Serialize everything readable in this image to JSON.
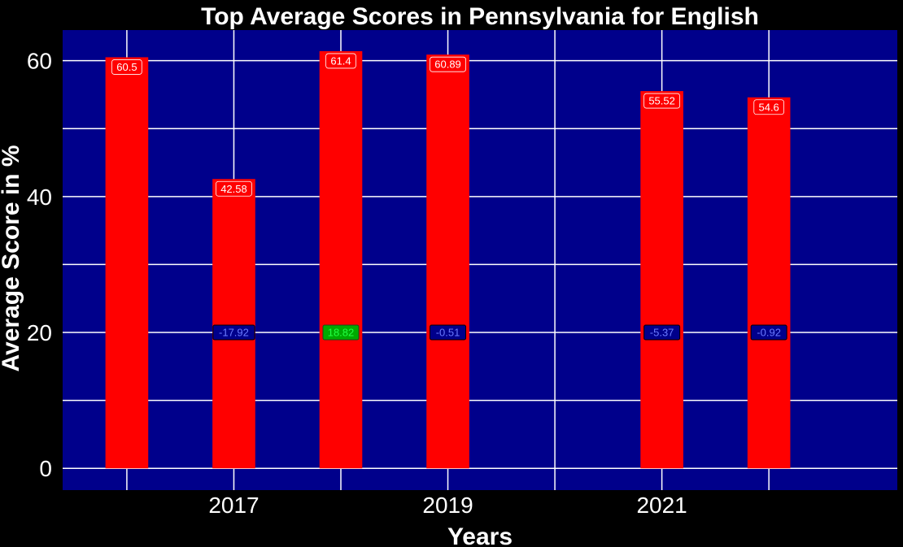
{
  "chart_data": {
    "type": "bar",
    "title": "Top Average Scores in Pennsylvania for English",
    "xlabel": "Years",
    "ylabel": "Average Score in %",
    "x": [
      2016,
      2017,
      2018,
      2019,
      2021,
      2022
    ],
    "values": [
      60.5,
      42.58,
      61.4,
      60.89,
      55.52,
      54.6
    ],
    "value_labels": [
      "60.5",
      "42.58",
      "61.4",
      "60.89",
      "55.52",
      "54.6"
    ],
    "changes": [
      {
        "x": 2017,
        "label": "-17.92",
        "value": -17.92
      },
      {
        "x": 2018,
        "label": "18.82",
        "value": 18.82
      },
      {
        "x": 2019,
        "label": "-0.51",
        "value": -0.51
      },
      {
        "x": 2021,
        "label": "-5.37",
        "value": -5.37
      },
      {
        "x": 2022,
        "label": "-0.92",
        "value": -0.92
      }
    ],
    "change_label_y": 20,
    "xlim": [
      2015.4,
      2023.2
    ],
    "ylim": [
      -3.2,
      64.5
    ],
    "x_ticks": [
      2017,
      2019,
      2021
    ],
    "x_tick_labels": [
      "2017",
      "2019",
      "2021"
    ],
    "x_gridlines": [
      2016,
      2017,
      2018,
      2019,
      2020,
      2021,
      2022
    ],
    "y_ticks": [
      0,
      20,
      40,
      60
    ],
    "y_tick_labels": [
      "0",
      "20",
      "40",
      "60"
    ],
    "y_gridlines": [
      0,
      10,
      20,
      30,
      40,
      50,
      60
    ],
    "grid": true,
    "bar_width_years": 0.4,
    "colors": {
      "background": "#000000",
      "plot_background": "#00008b",
      "bar": "#ff0000",
      "grid": "#ffffff",
      "text": "#ffffff",
      "negative_label_text": "#6b7bff",
      "positive_label_text": "#22ff44",
      "change_label_fill": "#00008b",
      "positive_label_fill": "#00aa00"
    }
  }
}
